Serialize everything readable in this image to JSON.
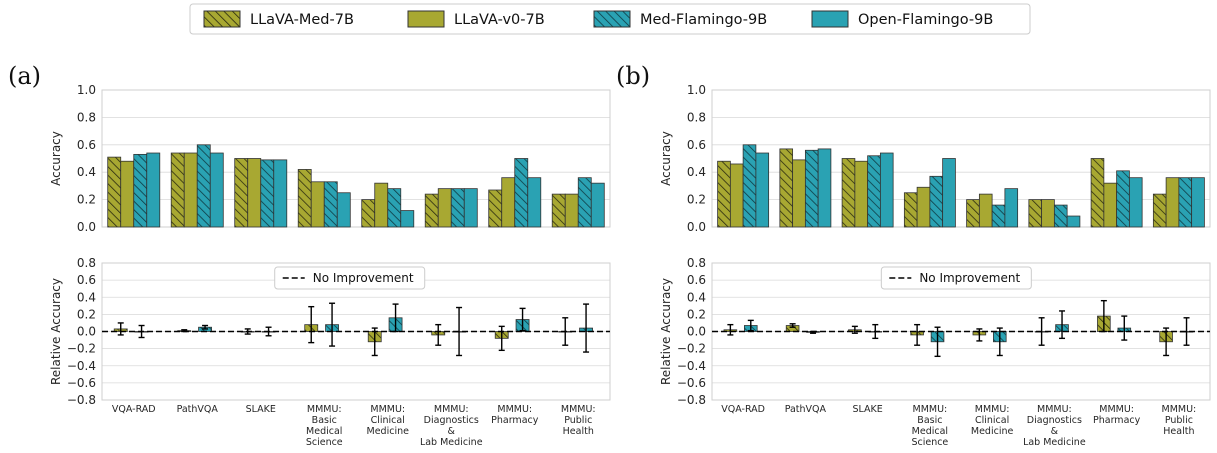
{
  "legend": {
    "items": [
      {
        "name": "LLaVA-Med-7B",
        "color": "#a8a832",
        "hatch": true
      },
      {
        "name": "LLaVA-v0-7B",
        "color": "#a8a832",
        "hatch": false
      },
      {
        "name": "Med-Flamingo-9B",
        "color": "#2aa2b3",
        "hatch": true
      },
      {
        "name": "Open-Flamingo-9B",
        "color": "#2aa2b3",
        "hatch": false
      }
    ]
  },
  "no_improvement_label": "No Improvement",
  "chart_data": [
    {
      "panel": "(a)",
      "type": "bar",
      "ylabel": "Accuracy",
      "ylim": [
        0,
        1.0
      ],
      "yticks": [
        "0.0",
        "0.2",
        "0.4",
        "0.6",
        "0.8",
        "1.0"
      ],
      "categories": [
        "VQA-RAD",
        "PathVQA",
        "SLAKE",
        "MMMU:\nBasic\nMedical\nScience",
        "MMMU:\nClinical\nMedicine",
        "MMMU:\nDiagnostics\n&\nLab Medicine",
        "MMMU:\nPharmacy",
        "MMMU:\nPublic\nHealth"
      ],
      "series": [
        {
          "name": "LLaVA-Med-7B",
          "values": [
            0.51,
            0.54,
            0.5,
            0.42,
            0.2,
            0.24,
            0.27,
            0.24
          ]
        },
        {
          "name": "LLaVA-v0-7B",
          "values": [
            0.48,
            0.54,
            0.5,
            0.33,
            0.32,
            0.28,
            0.36,
            0.24
          ]
        },
        {
          "name": "Med-Flamingo-9B",
          "values": [
            0.53,
            0.6,
            0.49,
            0.33,
            0.28,
            0.28,
            0.5,
            0.36
          ]
        },
        {
          "name": "Open-Flamingo-9B",
          "values": [
            0.54,
            0.54,
            0.49,
            0.25,
            0.12,
            0.28,
            0.36,
            0.32
          ]
        }
      ]
    },
    {
      "panel": "(a)",
      "type": "bar",
      "ylabel": "Relative Accuracy",
      "ylim": [
        -0.8,
        0.8
      ],
      "yticks": [
        "0.8",
        "0.6",
        "0.4",
        "0.2",
        "0.0",
        "−0.2",
        "−0.4",
        "−0.6",
        "−0.8"
      ],
      "categories": [
        "VQA-RAD",
        "PathVQA",
        "SLAKE",
        "MMMU:\nBasic\nMedical\nScience",
        "MMMU:\nClinical\nMedicine",
        "MMMU:\nDiagnostics\n&\nLab Medicine",
        "MMMU:\nPharmacy",
        "MMMU:\nPublic\nHealth"
      ],
      "series": [
        {
          "name": "LLaVA-Med-7B",
          "values": [
            0.03,
            0.01,
            0.0,
            0.08,
            -0.12,
            -0.04,
            -0.08,
            0.0
          ],
          "errors": [
            0.07,
            0.01,
            0.03,
            0.21,
            0.16,
            0.12,
            0.14,
            0.16
          ]
        },
        {
          "name": "Med-Flamingo-9B",
          "values": [
            0.0,
            0.05,
            0.0,
            0.08,
            0.16,
            0.0,
            0.14,
            0.04
          ],
          "errors": [
            0.07,
            0.02,
            0.05,
            0.25,
            0.16,
            0.28,
            0.13,
            0.28
          ]
        }
      ]
    },
    {
      "panel": "(b)",
      "type": "bar",
      "ylabel": "Accuracy",
      "ylim": [
        0,
        1.0
      ],
      "yticks": [
        "0.0",
        "0.2",
        "0.4",
        "0.6",
        "0.8",
        "1.0"
      ],
      "categories": [
        "VQA-RAD",
        "PathVQA",
        "SLAKE",
        "MMMU:\nBasic\nMedical\nScience",
        "MMMU:\nClinical\nMedicine",
        "MMMU:\nDiagnostics\n&\nLab Medicine",
        "MMMU:\nPharmacy",
        "MMMU:\nPublic\nHealth"
      ],
      "series": [
        {
          "name": "LLaVA-Med-7B",
          "values": [
            0.48,
            0.57,
            0.5,
            0.25,
            0.2,
            0.2,
            0.5,
            0.24
          ]
        },
        {
          "name": "LLaVA-v0-7B",
          "values": [
            0.46,
            0.49,
            0.48,
            0.29,
            0.24,
            0.2,
            0.32,
            0.36
          ]
        },
        {
          "name": "Med-Flamingo-9B",
          "values": [
            0.6,
            0.56,
            0.52,
            0.37,
            0.16,
            0.16,
            0.41,
            0.36
          ]
        },
        {
          "name": "Open-Flamingo-9B",
          "values": [
            0.54,
            0.57,
            0.54,
            0.5,
            0.28,
            0.08,
            0.36,
            0.36
          ]
        }
      ]
    },
    {
      "panel": "(b)",
      "type": "bar",
      "ylabel": "Relative Accuracy",
      "ylim": [
        -0.8,
        0.8
      ],
      "yticks": [
        "0.8",
        "0.6",
        "0.4",
        "0.2",
        "0.0",
        "−0.2",
        "−0.4",
        "−0.6",
        "−0.8"
      ],
      "categories": [
        "VQA-RAD",
        "PathVQA",
        "SLAKE",
        "MMMU:\nBasic\nMedical\nScience",
        "MMMU:\nClinical\nMedicine",
        "MMMU:\nDiagnostics\n&\nLab Medicine",
        "MMMU:\nPharmacy",
        "MMMU:\nPublic\nHealth"
      ],
      "series": [
        {
          "name": "LLaVA-Med-7B",
          "values": [
            0.02,
            0.07,
            0.02,
            -0.04,
            -0.04,
            0.0,
            0.18,
            -0.12
          ],
          "errors": [
            0.06,
            0.02,
            0.04,
            0.12,
            0.07,
            0.16,
            0.18,
            0.16
          ]
        },
        {
          "name": "Med-Flamingo-9B",
          "values": [
            0.07,
            -0.01,
            0.0,
            -0.12,
            -0.12,
            0.08,
            0.04,
            0.0
          ],
          "errors": [
            0.06,
            0.01,
            0.08,
            0.17,
            0.16,
            0.16,
            0.14,
            0.16
          ]
        }
      ]
    }
  ]
}
